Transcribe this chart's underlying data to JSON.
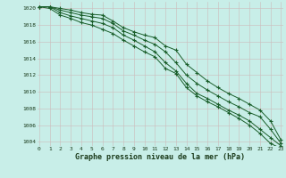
{
  "xlabel": "Graphe pression niveau de la mer (hPa)",
  "background_color": "#c8eee8",
  "grid_color": "#b8d8cc",
  "line_color": "#1a5e2a",
  "marker_color": "#1a5e2a",
  "xmin": 0,
  "xmax": 23,
  "ymin": 1003.5,
  "ymax": 1020.8,
  "yticks": [
    1004,
    1006,
    1008,
    1010,
    1012,
    1014,
    1016,
    1018,
    1020
  ],
  "xticks": [
    0,
    1,
    2,
    3,
    4,
    5,
    6,
    7,
    8,
    9,
    10,
    11,
    12,
    13,
    14,
    15,
    16,
    17,
    18,
    19,
    20,
    21,
    22,
    23
  ],
  "series": [
    [
      1020.2,
      1020.2,
      1020.0,
      1019.8,
      1019.5,
      1019.3,
      1019.2,
      1018.5,
      1017.7,
      1017.2,
      1016.8,
      1016.5,
      1015.5,
      1015.0,
      1013.3,
      1012.3,
      1011.3,
      1010.5,
      1009.8,
      1009.2,
      1008.5,
      1007.8,
      1006.5,
      1004.2
    ],
    [
      1020.2,
      1020.2,
      1019.8,
      1019.5,
      1019.2,
      1019.0,
      1018.8,
      1018.2,
      1017.3,
      1016.8,
      1016.2,
      1015.7,
      1014.8,
      1013.5,
      1012.0,
      1011.0,
      1010.2,
      1009.5,
      1008.8,
      1008.2,
      1007.5,
      1007.0,
      1005.5,
      1003.8
    ],
    [
      1020.2,
      1020.2,
      1019.5,
      1019.1,
      1018.8,
      1018.5,
      1018.2,
      1017.7,
      1016.8,
      1016.2,
      1015.5,
      1014.8,
      1013.5,
      1012.5,
      1011.0,
      1009.8,
      1009.2,
      1008.5,
      1007.8,
      1007.2,
      1006.5,
      1005.5,
      1004.5,
      1003.5
    ],
    [
      1020.2,
      1020.0,
      1019.2,
      1018.8,
      1018.3,
      1018.0,
      1017.5,
      1017.0,
      1016.2,
      1015.5,
      1014.8,
      1014.2,
      1012.8,
      1012.2,
      1010.5,
      1009.5,
      1008.8,
      1008.2,
      1007.5,
      1006.8,
      1006.0,
      1005.0,
      1003.8,
      1003.2
    ]
  ]
}
